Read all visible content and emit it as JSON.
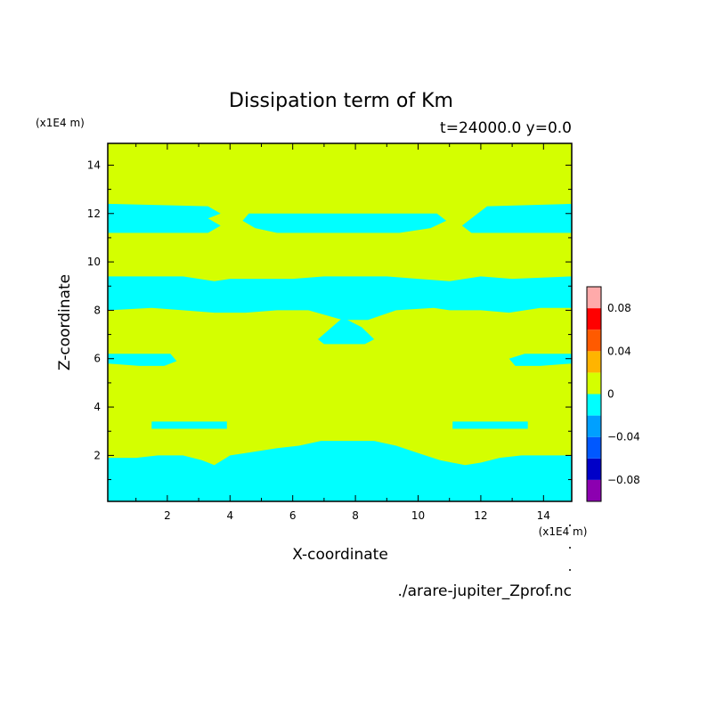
{
  "chart_data": {
    "type": "heatmap",
    "title": "Dissipation term of Km",
    "subtitle": "t=24000.0 y=0.0",
    "xlabel": "X-coordinate",
    "ylabel": "Z-coordinate",
    "x_unit": "(x1E4 m)",
    "y_unit": "(x1E4 m)",
    "xlim": [
      0.1,
      14.9
    ],
    "ylim": [
      0.1,
      14.9
    ],
    "xticks": [
      2,
      4,
      6,
      8,
      10,
      12,
      14
    ],
    "yticks": [
      2,
      4,
      6,
      8,
      10,
      12,
      14
    ],
    "background_level": 0,
    "background_color": "#d4ff00",
    "regions": [
      {
        "level": -0.02,
        "color": "#00ffff",
        "polygon": [
          [
            0.1,
            0.1
          ],
          [
            14.9,
            0.1
          ],
          [
            14.9,
            2.0
          ],
          [
            13.3,
            2.0
          ],
          [
            12.6,
            1.9
          ],
          [
            12.0,
            1.7
          ],
          [
            11.5,
            1.6
          ],
          [
            10.7,
            1.8
          ],
          [
            10.0,
            2.1
          ],
          [
            9.3,
            2.4
          ],
          [
            8.6,
            2.6
          ],
          [
            8.0,
            2.6
          ],
          [
            7.6,
            2.6
          ],
          [
            6.9,
            2.6
          ],
          [
            6.2,
            2.4
          ],
          [
            5.5,
            2.3
          ],
          [
            4.5,
            2.1
          ],
          [
            4.0,
            2.0
          ],
          [
            3.5,
            1.6
          ],
          [
            3.1,
            1.8
          ],
          [
            2.5,
            2.0
          ],
          [
            1.7,
            2.0
          ],
          [
            1.0,
            1.9
          ],
          [
            0.1,
            1.9
          ]
        ]
      },
      {
        "level": -0.02,
        "color": "#00ffff",
        "polygon": [
          [
            1.5,
            3.4
          ],
          [
            3.9,
            3.4
          ],
          [
            3.9,
            3.1
          ],
          [
            1.5,
            3.1
          ]
        ]
      },
      {
        "level": -0.02,
        "color": "#00ffff",
        "polygon": [
          [
            11.1,
            3.4
          ],
          [
            13.5,
            3.4
          ],
          [
            13.5,
            3.1
          ],
          [
            11.1,
            3.1
          ]
        ]
      },
      {
        "level": -0.02,
        "color": "#00ffff",
        "polygon": [
          [
            0.1,
            6.2
          ],
          [
            2.1,
            6.2
          ],
          [
            2.3,
            5.9
          ],
          [
            1.9,
            5.7
          ],
          [
            1.1,
            5.7
          ],
          [
            0.1,
            5.8
          ]
        ]
      },
      {
        "level": -0.02,
        "color": "#00ffff",
        "polygon": [
          [
            12.9,
            6.0
          ],
          [
            13.4,
            6.2
          ],
          [
            14.9,
            6.2
          ],
          [
            14.9,
            5.8
          ],
          [
            13.9,
            5.7
          ],
          [
            13.1,
            5.7
          ]
        ]
      },
      {
        "level": -0.02,
        "color": "#00ffff",
        "polygon": [
          [
            6.8,
            6.8
          ],
          [
            7.6,
            7.7
          ],
          [
            8.2,
            7.3
          ],
          [
            8.6,
            6.8
          ],
          [
            8.3,
            6.6
          ],
          [
            7.0,
            6.6
          ]
        ]
      },
      {
        "level": -0.02,
        "color": "#00ffff",
        "polygon": [
          [
            0.1,
            9.4
          ],
          [
            2.5,
            9.4
          ],
          [
            3.5,
            9.2
          ],
          [
            4.0,
            9.3
          ],
          [
            5.0,
            9.3
          ],
          [
            6.0,
            9.3
          ],
          [
            7.0,
            9.4
          ],
          [
            8.0,
            9.4
          ],
          [
            9.0,
            9.4
          ],
          [
            10.0,
            9.3
          ],
          [
            11.0,
            9.2
          ],
          [
            12.0,
            9.4
          ],
          [
            13.0,
            9.3
          ],
          [
            14.9,
            9.4
          ],
          [
            14.9,
            8.1
          ],
          [
            13.9,
            8.1
          ],
          [
            12.9,
            7.9
          ],
          [
            12.0,
            8.0
          ],
          [
            11.0,
            8.0
          ],
          [
            10.5,
            8.1
          ],
          [
            9.3,
            8.0
          ],
          [
            8.4,
            7.6
          ],
          [
            7.6,
            7.6
          ],
          [
            6.5,
            8.0
          ],
          [
            5.5,
            8.0
          ],
          [
            4.5,
            7.9
          ],
          [
            3.5,
            7.9
          ],
          [
            2.5,
            8.0
          ],
          [
            1.5,
            8.1
          ],
          [
            0.1,
            8.0
          ]
        ]
      },
      {
        "level": -0.02,
        "color": "#00ffff",
        "polygon": [
          [
            0.1,
            12.4
          ],
          [
            3.3,
            12.3
          ],
          [
            3.7,
            12.0
          ],
          [
            3.3,
            11.8
          ],
          [
            3.7,
            11.5
          ],
          [
            3.3,
            11.2
          ],
          [
            0.1,
            11.2
          ]
        ]
      },
      {
        "level": -0.02,
        "color": "#00ffff",
        "polygon": [
          [
            4.4,
            11.7
          ],
          [
            4.6,
            12.0
          ],
          [
            10.6,
            12.0
          ],
          [
            10.9,
            11.7
          ],
          [
            10.4,
            11.4
          ],
          [
            9.4,
            11.2
          ],
          [
            5.5,
            11.2
          ],
          [
            4.8,
            11.4
          ]
        ]
      },
      {
        "level": -0.02,
        "color": "#00ffff",
        "polygon": [
          [
            11.5,
            11.6
          ],
          [
            11.8,
            11.9
          ],
          [
            12.2,
            12.3
          ],
          [
            14.9,
            12.4
          ],
          [
            14.9,
            11.2
          ],
          [
            11.7,
            11.2
          ],
          [
            11.4,
            11.5
          ]
        ]
      }
    ],
    "colorbar": {
      "levels": [
        -0.1,
        -0.08,
        -0.06,
        -0.04,
        -0.02,
        0,
        0.02,
        0.04,
        0.06,
        0.08,
        0.1
      ],
      "colors": [
        "#8c00b0",
        "#0000c8",
        "#0058ff",
        "#00a0ff",
        "#00ffff",
        "#d4ff00",
        "#ffb400",
        "#ff5a00",
        "#ff0000",
        "#ffaaaa"
      ],
      "tick_values": [
        -0.08,
        -0.04,
        0,
        0.04,
        0.08
      ],
      "tick_labels": [
        "−0.08",
        "−0.04",
        "0",
        "0.04",
        "0.08"
      ]
    },
    "source_file": "./arare-jupiter_Zprof.nc"
  }
}
